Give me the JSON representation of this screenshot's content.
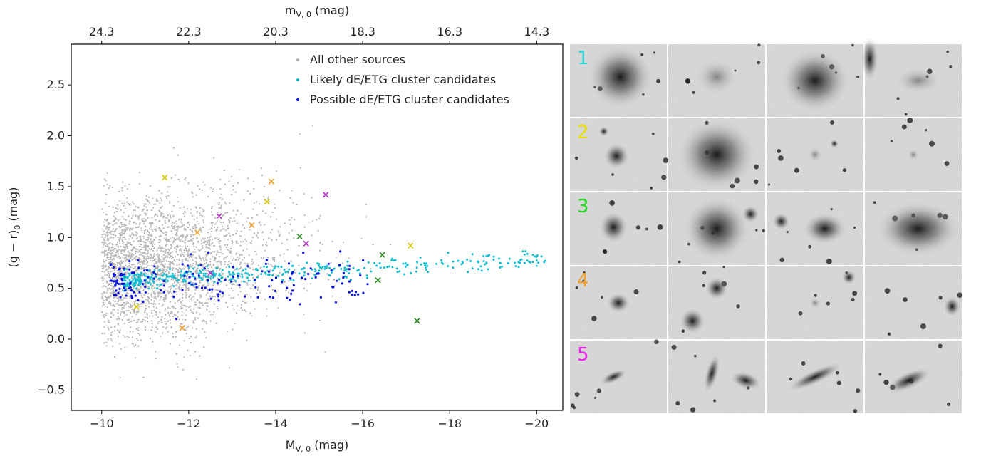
{
  "chart_data": {
    "type": "scatter",
    "xlabel": "M",
    "xlabel_sub": "V, 0",
    "xlabel_unit": " (mag)",
    "x2label": "m",
    "x2label_sub": "V, 0",
    "x2label_unit": " (mag)",
    "ylabel": "(g − r)",
    "ylabel_sub": "0",
    "ylabel_unit": " (mag)",
    "xlim": [
      -9.3,
      -20.6
    ],
    "ylim": [
      -0.7,
      2.9
    ],
    "x2_offset": 34.3,
    "xticks": [
      -10,
      -12,
      -14,
      -16,
      -18,
      -20
    ],
    "xtick_labels": [
      "−10",
      "−12",
      "−14",
      "−16",
      "−18",
      "−20"
    ],
    "x2tick_labels": [
      "24.3",
      "22.3",
      "20.3",
      "18.3",
      "16.3",
      "14.3"
    ],
    "yticks": [
      -0.5,
      0.0,
      0.5,
      1.0,
      1.5,
      2.0,
      2.5
    ],
    "ytick_labels": [
      "−0.5",
      "0.0",
      "0.5",
      "1.0",
      "1.5",
      "2.0",
      "2.5"
    ],
    "grid": false,
    "legend_position": "top-right",
    "series": [
      {
        "name": "All other sources",
        "color": "#b5b5b5",
        "distribution": "dense gray cloud: x from -10 to -17, mostly -10 to -14.5; y from -0.6 to 2.25, densest near 0.6-1.0"
      },
      {
        "name": "Likely dE/ETG cluster candidates",
        "color": "#17becf",
        "distribution": "narrow sequence: x from -10.5 to -20.2; y rising from ~0.58 to ~0.78"
      },
      {
        "name": "Possible dE/ETG cluster candidates",
        "color": "#0a10e0",
        "distribution": "x from -10.2 to -16.2, concentrated -10.5 to -13; y from 0.2 to 0.9, mostly 0.4-0.7"
      }
    ],
    "markers": [
      {
        "group": 1,
        "color": "#d4c600",
        "points": [
          [
            -11.45,
            1.59
          ],
          [
            -13.8,
            1.35
          ],
          [
            -17.1,
            0.92
          ],
          [
            -10.8,
            0.32
          ]
        ]
      },
      {
        "group": 2,
        "color": "#f0a030",
        "points": [
          [
            -13.9,
            1.55
          ],
          [
            -12.2,
            1.05
          ],
          [
            -13.45,
            1.12
          ],
          [
            -11.85,
            0.11
          ]
        ]
      },
      {
        "group": 3,
        "color": "#2e8b22",
        "points": [
          [
            -14.55,
            1.01
          ],
          [
            -16.45,
            0.83
          ],
          [
            -16.35,
            0.58
          ],
          [
            -17.25,
            0.18
          ]
        ]
      },
      {
        "group": 4,
        "color": "#b030c0",
        "points": [
          [
            -12.7,
            1.21
          ],
          [
            -15.15,
            1.42
          ],
          [
            -14.7,
            0.94
          ],
          [
            -12.5,
            0.65
          ]
        ]
      }
    ]
  },
  "thumbnails": {
    "rows": [
      {
        "label": "1",
        "color": "#25d8d8"
      },
      {
        "label": "2",
        "color": "#e8e000"
      },
      {
        "label": "3",
        "color": "#22dd22"
      },
      {
        "label": "4",
        "color": "#f0a030"
      },
      {
        "label": "5",
        "color": "#ee22ee"
      }
    ]
  }
}
